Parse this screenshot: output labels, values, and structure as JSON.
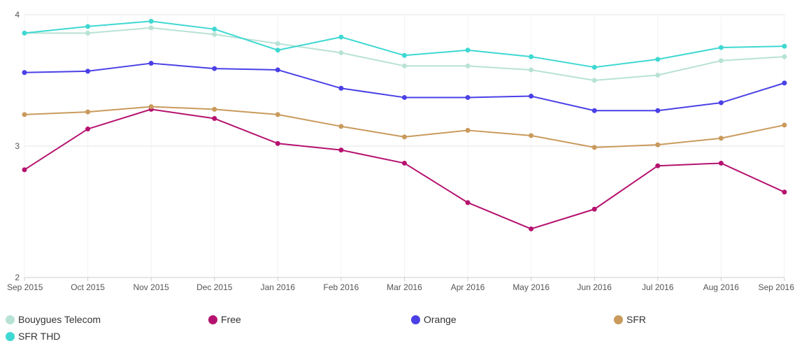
{
  "chart_data": {
    "type": "line",
    "categories": [
      "Sep 2015",
      "Oct 2015",
      "Nov 2015",
      "Dec 2015",
      "Jan 2016",
      "Feb 2016",
      "Mar 2016",
      "Apr 2016",
      "May 2016",
      "Jun 2016",
      "Jul 2016",
      "Aug 2016",
      "Sep 2016"
    ],
    "ylim": [
      2,
      4
    ],
    "yticks": [
      "2",
      "3",
      "4"
    ],
    "grid": true,
    "legend_position": "bottom",
    "series": [
      {
        "name": "Bouygues Telecom",
        "color": "#b8e2d6",
        "values": [
          3.86,
          3.86,
          3.9,
          3.85,
          3.78,
          3.71,
          3.61,
          3.61,
          3.58,
          3.5,
          3.54,
          3.65,
          3.68
        ]
      },
      {
        "name": "Free",
        "color": "#b5126f",
        "values": [
          2.82,
          3.13,
          3.28,
          3.21,
          3.02,
          2.97,
          2.87,
          2.57,
          2.37,
          2.52,
          2.85,
          2.87,
          2.65
        ]
      },
      {
        "name": "Orange",
        "color": "#4a40e6",
        "values": [
          3.56,
          3.57,
          3.63,
          3.59,
          3.58,
          3.44,
          3.37,
          3.37,
          3.38,
          3.27,
          3.27,
          3.33,
          3.48
        ]
      },
      {
        "name": "SFR",
        "color": "#c99a5c",
        "values": [
          3.24,
          3.26,
          3.3,
          3.28,
          3.24,
          3.15,
          3.07,
          3.12,
          3.08,
          2.99,
          3.01,
          3.06,
          3.16
        ]
      },
      {
        "name": "SFR THD",
        "color": "#3fd8d2",
        "values": [
          3.86,
          3.91,
          3.95,
          3.89,
          3.73,
          3.83,
          3.69,
          3.73,
          3.68,
          3.6,
          3.66,
          3.75,
          3.76
        ]
      }
    ]
  }
}
